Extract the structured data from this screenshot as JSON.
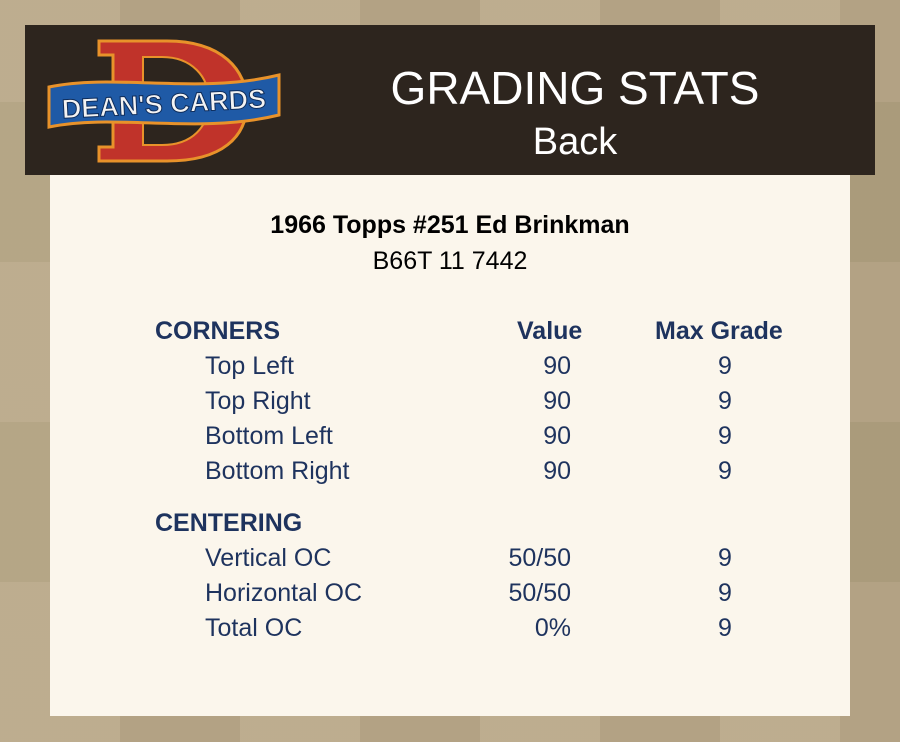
{
  "header": {
    "logo_text": "DEAN'S CARDS",
    "title": "GRADING STATS",
    "subtitle": "Back"
  },
  "card": {
    "title": "1966 Topps #251 Ed Brinkman",
    "code": "B66T 11 7442"
  },
  "columns": {
    "value": "Value",
    "max_grade": "Max Grade"
  },
  "corners": {
    "label": "CORNERS",
    "rows": [
      {
        "label": "Top Left",
        "value": "90",
        "max": "9"
      },
      {
        "label": "Top Right",
        "value": "90",
        "max": "9"
      },
      {
        "label": "Bottom Left",
        "value": "90",
        "max": "9"
      },
      {
        "label": "Bottom Right",
        "value": "90",
        "max": "9"
      }
    ]
  },
  "centering": {
    "label": "CENTERING",
    "rows": [
      {
        "label": "Vertical OC",
        "value": "50/50",
        "max": "9"
      },
      {
        "label": "Horizontal OC",
        "value": "50/50",
        "max": "9"
      },
      {
        "label": "Total OC",
        "value": "0%",
        "max": "9"
      }
    ]
  },
  "colors": {
    "header_bg": "#2d251e",
    "panel_bg": "#fbf6ec",
    "text_navy": "#1e335e",
    "background": "#b7a684"
  }
}
